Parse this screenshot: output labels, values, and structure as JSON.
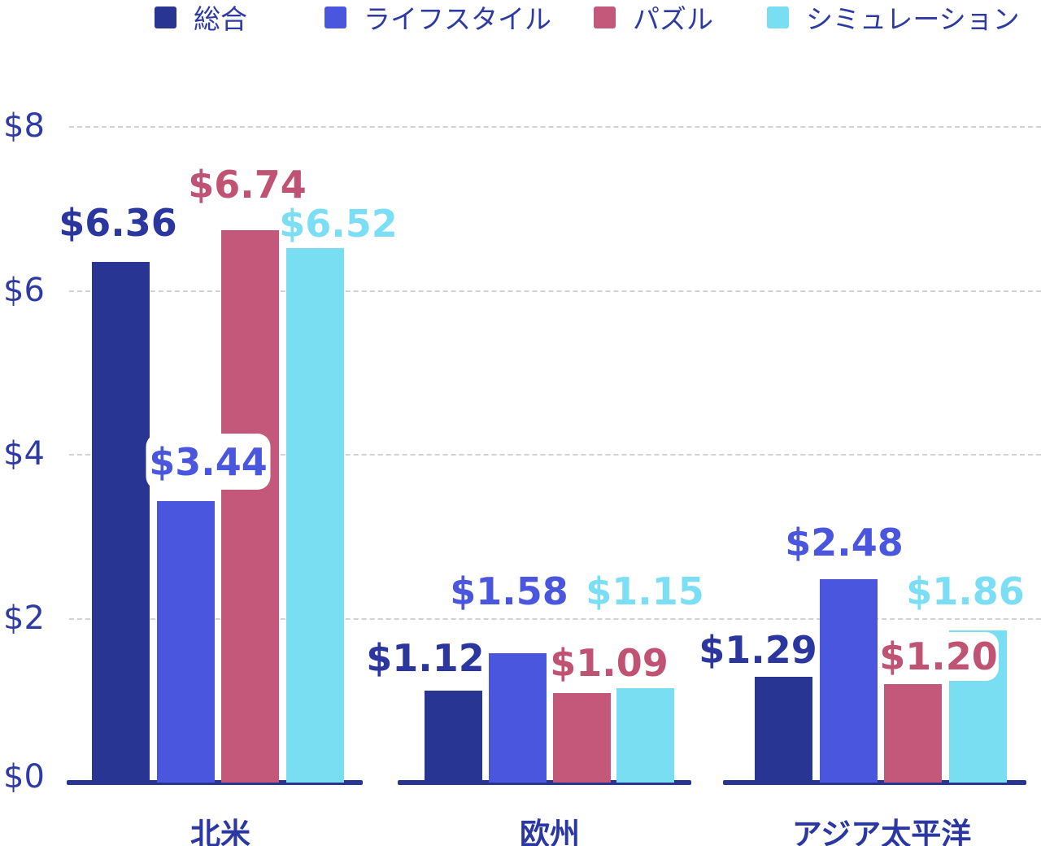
{
  "chart_data": {
    "type": "bar",
    "title": "",
    "categories": [
      "北米",
      "欧州",
      "アジア太平洋"
    ],
    "series": [
      {
        "name": "総合",
        "color": "#283593",
        "label_color": "#2b379e",
        "values": [
          6.36,
          1.12,
          1.29
        ],
        "labels": [
          "$6.36",
          "$1.12",
          "$1.29"
        ]
      },
      {
        "name": "ライフスタイル",
        "color": "#4a56dd",
        "label_color": "#4a56dd",
        "values": [
          3.44,
          1.58,
          2.48
        ],
        "labels": [
          "$3.44",
          "$1.58",
          "$2.48"
        ]
      },
      {
        "name": "パズル",
        "color": "#c4587a",
        "label_color": "#c05374",
        "values": [
          6.74,
          1.09,
          1.2
        ],
        "labels": [
          "$6.74",
          "$1.09",
          "$1.20"
        ]
      },
      {
        "name": "シミュレーション",
        "color": "#7adef2",
        "label_color": "#7cdef5",
        "values": [
          6.52,
          1.15,
          1.86
        ],
        "labels": [
          "$6.52",
          "$1.15",
          "$1.86"
        ]
      }
    ],
    "y_axis": {
      "range": [
        0,
        8
      ],
      "ticks": [
        {
          "value": 0,
          "label": "$0"
        },
        {
          "value": 2,
          "label": "$2"
        },
        {
          "value": 4,
          "label": "$4"
        },
        {
          "value": 6,
          "label": "$6"
        },
        {
          "value": 8,
          "label": "$8"
        }
      ]
    },
    "gridlines_at": [
      2,
      4,
      6,
      8
    ],
    "grid": "horizontal-dashed",
    "legend_position": "top",
    "value_prefix": "$",
    "axis_color": "#283593",
    "gridline_color": "#d2d2d6",
    "tick_text_color": "#2e3ba5",
    "category_text_color": "#2b38a3",
    "legend_text_color": "#2d3aa4"
  }
}
